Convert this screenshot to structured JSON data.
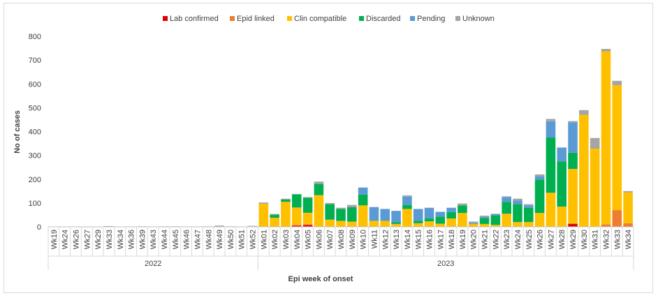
{
  "chart_data": {
    "type": "bar",
    "stacked": true,
    "title": "",
    "xlabel": "Epi week of onset",
    "ylabel": "No of cases",
    "ylim": [
      0,
      800
    ],
    "yticks": [
      0,
      100,
      200,
      300,
      400,
      500,
      600,
      700,
      800
    ],
    "grid": false,
    "legend_position": "top",
    "categories": [
      "Wk19",
      "Wk24",
      "Wk26",
      "Wk27",
      "Wk29",
      "Wk33",
      "Wk34",
      "Wk36",
      "Wk39",
      "Wk43",
      "Wk44",
      "Wk45",
      "Wk46",
      "Wk47",
      "Wk48",
      "Wk49",
      "Wk50",
      "Wk51",
      "Wk52",
      "Wk01",
      "Wk02",
      "Wk03",
      "Wk04",
      "Wk05",
      "Wk06",
      "Wk07",
      "Wk08",
      "Wk09",
      "Wk10",
      "Wk11",
      "Wk12",
      "Wk13",
      "Wk14",
      "Wk15",
      "Wk16",
      "Wk17",
      "Wk18",
      "Wk19",
      "Wk20",
      "Wk21",
      "Wk22",
      "Wk23",
      "Wk24",
      "Wk25",
      "Wk26",
      "Wk27",
      "Wk28",
      "Wk29",
      "Wk30",
      "Wk31",
      "Wk32",
      "Wk33",
      "Wk34"
    ],
    "year_groups": [
      {
        "label": "2022",
        "start": 0,
        "end": 18
      },
      {
        "label": "2023",
        "start": 19,
        "end": 52
      }
    ],
    "series": [
      {
        "name": "Lab confirmed",
        "color": "#e00000",
        "values": [
          0,
          0,
          0,
          0,
          0,
          0,
          0,
          0,
          0,
          0,
          0,
          0,
          0,
          0,
          0,
          0,
          0,
          0,
          0,
          0,
          0,
          0,
          5,
          8,
          0,
          0,
          0,
          0,
          0,
          0,
          0,
          0,
          0,
          0,
          0,
          0,
          0,
          0,
          0,
          0,
          0,
          0,
          0,
          0,
          0,
          0,
          0,
          12,
          0,
          0,
          0,
          0,
          0
        ]
      },
      {
        "name": "Epid linked",
        "color": "#ed7d31",
        "values": [
          0,
          0,
          0,
          0,
          0,
          0,
          0,
          0,
          0,
          0,
          0,
          0,
          0,
          0,
          0,
          0,
          0,
          0,
          0,
          0,
          0,
          0,
          3,
          3,
          0,
          0,
          0,
          0,
          0,
          0,
          0,
          0,
          0,
          0,
          0,
          0,
          0,
          0,
          0,
          0,
          0,
          0,
          0,
          0,
          0,
          0,
          0,
          3,
          0,
          0,
          10,
          70,
          15
        ]
      },
      {
        "name": "Clin compatible",
        "color": "#ffc000",
        "values": [
          0,
          0,
          0,
          0,
          0,
          0,
          0,
          0,
          0,
          0,
          0,
          0,
          0,
          0,
          0,
          0,
          0,
          0,
          2,
          97,
          38,
          105,
          73,
          48,
          133,
          30,
          25,
          22,
          90,
          25,
          25,
          12,
          75,
          15,
          23,
          13,
          35,
          58,
          12,
          12,
          8,
          55,
          20,
          20,
          58,
          143,
          85,
          228,
          470,
          328,
          727,
          525,
          130
        ]
      },
      {
        "name": "Discarded",
        "color": "#00b050",
        "values": [
          0,
          0,
          0,
          0,
          0,
          0,
          0,
          0,
          0,
          0,
          0,
          0,
          0,
          0,
          0,
          0,
          0,
          0,
          0,
          0,
          13,
          10,
          55,
          63,
          47,
          65,
          50,
          60,
          45,
          0,
          0,
          7,
          17,
          10,
          12,
          30,
          27,
          32,
          0,
          25,
          40,
          50,
          75,
          60,
          140,
          232,
          190,
          68,
          0,
          0,
          0,
          0,
          0
        ]
      },
      {
        "name": "Pending",
        "color": "#5b9bd5",
        "values": [
          0,
          0,
          0,
          0,
          0,
          0,
          0,
          0,
          0,
          0,
          0,
          0,
          0,
          0,
          0,
          0,
          0,
          0,
          0,
          0,
          0,
          0,
          0,
          0,
          0,
          0,
          0,
          0,
          30,
          58,
          50,
          48,
          35,
          50,
          45,
          20,
          18,
          0,
          5,
          5,
          5,
          20,
          15,
          10,
          15,
          68,
          58,
          128,
          0,
          0,
          0,
          0,
          0
        ]
      },
      {
        "name": "Unknown",
        "color": "#a5a5a5",
        "values": [
          1,
          1,
          1,
          1,
          1,
          3,
          1,
          1,
          2,
          1,
          2,
          2,
          1,
          1,
          2,
          5,
          2,
          1,
          2,
          5,
          3,
          3,
          2,
          3,
          10,
          5,
          5,
          10,
          0,
          0,
          0,
          0,
          5,
          0,
          0,
          0,
          0,
          8,
          5,
          5,
          2,
          3,
          8,
          5,
          7,
          10,
          0,
          5,
          20,
          45,
          10,
          18,
          5
        ]
      }
    ]
  }
}
